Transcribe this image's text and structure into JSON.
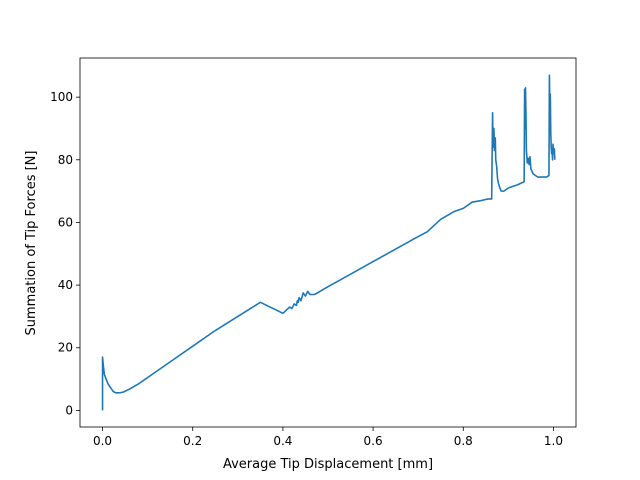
{
  "chart_data": {
    "type": "line",
    "title": "",
    "xlabel": "Average Tip Displacement [mm]",
    "ylabel": "Summation of Tip Forces [N]",
    "xlim": [
      -0.05,
      1.05
    ],
    "ylim": [
      -5.3,
      112.5
    ],
    "xticks": [
      0.0,
      0.2,
      0.4,
      0.6,
      0.8,
      1.0
    ],
    "xtick_labels": [
      "0.0",
      "0.2",
      "0.4",
      "0.6",
      "0.8",
      "1.0"
    ],
    "yticks": [
      0,
      20,
      40,
      60,
      80,
      100
    ],
    "ytick_labels": [
      "0",
      "20",
      "40",
      "60",
      "80",
      "100"
    ],
    "grid": false,
    "series": [
      {
        "color": "#1f77b4",
        "x": [
          0.0,
          0.0,
          0.002,
          0.004,
          0.008,
          0.012,
          0.018,
          0.024,
          0.03,
          0.036,
          0.045,
          0.06,
          0.08,
          0.1,
          0.15,
          0.2,
          0.25,
          0.3,
          0.35,
          0.4,
          0.415,
          0.42,
          0.425,
          0.43,
          0.432,
          0.434,
          0.436,
          0.44,
          0.445,
          0.45,
          0.455,
          0.46,
          0.47,
          0.48,
          0.5,
          0.55,
          0.6,
          0.65,
          0.7,
          0.72,
          0.75,
          0.78,
          0.8,
          0.82,
          0.84,
          0.855,
          0.863,
          0.865,
          0.866,
          0.868,
          0.869,
          0.871,
          0.872,
          0.874,
          0.876,
          0.878,
          0.88,
          0.884,
          0.89,
          0.9,
          0.91,
          0.92,
          0.935,
          0.936,
          0.937,
          0.938,
          0.939,
          0.94,
          0.941,
          0.942,
          0.944,
          0.946,
          0.948,
          0.95,
          0.952,
          0.955,
          0.96,
          0.965,
          0.975,
          0.985,
          0.99,
          0.991,
          0.992,
          0.993,
          0.994,
          0.995,
          0.996,
          0.997,
          0.998,
          0.999,
          1.0,
          1.002,
          1.003
        ],
        "y": [
          0.0,
          17.0,
          14.0,
          11.5,
          10.0,
          8.5,
          7.2,
          6.0,
          5.6,
          5.6,
          5.8,
          6.8,
          8.5,
          10.5,
          15.5,
          20.5,
          25.5,
          30.0,
          34.5,
          31.0,
          33.0,
          32.5,
          34.0,
          33.5,
          35.0,
          34.5,
          36.0,
          35.0,
          37.5,
          36.5,
          38.0,
          37.0,
          37.0,
          37.8,
          39.5,
          43.5,
          47.5,
          51.5,
          55.5,
          57.0,
          61.0,
          63.5,
          64.5,
          66.5,
          67.0,
          67.5,
          67.5,
          95.0,
          84.0,
          90.0,
          83.0,
          87.0,
          80.0,
          78.0,
          74.0,
          72.5,
          71.5,
          70.0,
          70.0,
          71.0,
          71.5,
          72.0,
          73.0,
          102.5,
          90.0,
          103.0,
          95.0,
          83.0,
          81.0,
          79.0,
          80.5,
          78.5,
          81.0,
          77.0,
          76.5,
          75.5,
          75.0,
          74.5,
          74.5,
          74.5,
          75.0,
          107.0,
          95.0,
          101.0,
          89.0,
          84.0,
          82.0,
          83.0,
          80.0,
          85.0,
          82.0,
          83.5,
          80.0
        ]
      }
    ]
  }
}
